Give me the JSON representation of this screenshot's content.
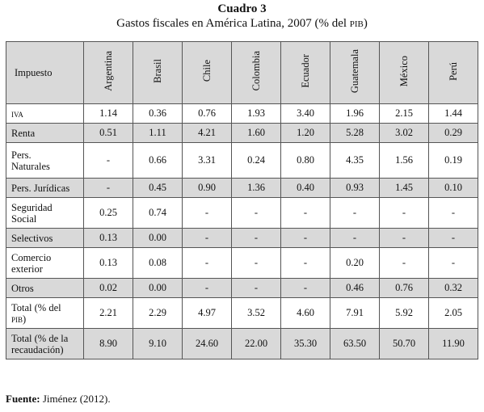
{
  "caption": {
    "number": "Cuadro 3",
    "title_main": "Gastos fiscales en América Latina, 2007 (% del ",
    "title_abbr": "pib",
    "title_end": ")"
  },
  "table": {
    "first_header": "Impuesto",
    "columns": [
      "Argentina",
      "Brasil",
      "Chile",
      "Colombia",
      "Ecuador",
      "Guatemala",
      "México",
      "Perú"
    ],
    "rows": [
      {
        "label": "iva",
        "small_caps": true,
        "values": [
          "1.14",
          "0.36",
          "0.76",
          "1.93",
          "3.40",
          "1.96",
          "2.15",
          "1.44"
        ]
      },
      {
        "label": "Renta",
        "values": [
          "0.51",
          "1.11",
          "4.21",
          "1.60",
          "1.20",
          "5.28",
          "3.02",
          "0.29"
        ]
      },
      {
        "label_lines": [
          "Pers.",
          "Naturales"
        ],
        "values": [
          "-",
          "0.66",
          "3.31",
          "0.24",
          "0.80",
          "4.35",
          "1.56",
          "0.19"
        ]
      },
      {
        "label": "Pers. Jurídicas",
        "values": [
          "-",
          "0.45",
          "0.90",
          "1.36",
          "0.40",
          "0.93",
          "1.45",
          "0.10"
        ]
      },
      {
        "label_lines": [
          "Seguridad",
          "Social"
        ],
        "values": [
          "0.25",
          "0.74",
          "-",
          "-",
          "-",
          "-",
          "-",
          "-"
        ]
      },
      {
        "label": "Selectivos",
        "values": [
          "0.13",
          "0.00",
          "-",
          "-",
          "-",
          "-",
          "-",
          "-"
        ]
      },
      {
        "label_lines": [
          "Comercio",
          "exterior"
        ],
        "values": [
          "0.13",
          "0.08",
          "-",
          "-",
          "-",
          "0.20",
          "-",
          "-"
        ]
      },
      {
        "label": "Otros",
        "values": [
          "0.02",
          "0.00",
          "-",
          "-",
          "-",
          "0.46",
          "0.76",
          "0.32"
        ]
      },
      {
        "label_lines": [
          "Total (% del",
          "pib)"
        ],
        "small_caps_line": 1,
        "values": [
          "2.21",
          "2.29",
          "4.97",
          "3.52",
          "4.60",
          "7.91",
          "5.92",
          "2.05"
        ]
      },
      {
        "label_lines": [
          "Total (% de la",
          "recaudación)"
        ],
        "values": [
          "8.90",
          "9.10",
          "24.60",
          "22.00",
          "35.30",
          "63.50",
          "50.70",
          "11.90"
        ]
      }
    ]
  },
  "source": {
    "label": "Fuente:",
    "text": " Jiménez (2012)."
  }
}
